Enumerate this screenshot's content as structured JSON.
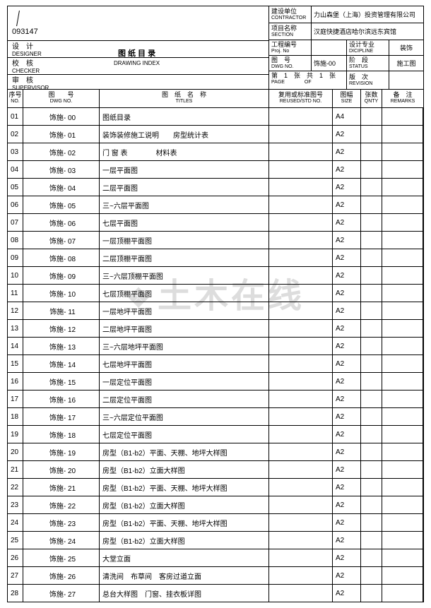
{
  "doc_number": "093147",
  "header_title_cn": "图 纸 目 录",
  "header_title_en": "DRAWING INDEX",
  "left_labels": {
    "designer_cn": "设　计",
    "designer_en": "DESIGNER",
    "checker_cn": "校　核",
    "checker_en": "CHECKER",
    "supervisor_cn": "审　核",
    "supervisor_en": "SUPERVISOR"
  },
  "right_header": {
    "contractor_lab_cn": "建设单位",
    "contractor_lab_en": "CONTRACTOR",
    "contractor_val": "力山森堡（上海）投资管理有限公司",
    "section_lab_cn": "项目名称",
    "section_lab_en": "SECTION",
    "section_val": "汉庭快捷酒店哈尔滨远东宾馆",
    "projno_lab_cn": "工程编号",
    "projno_lab_en": "Proj. No",
    "discipline_lab_cn": "设计专业",
    "discipline_lab_en": "DICIPLINE",
    "discipline_val": "装饰",
    "dwgno_lab_cn": "图　号",
    "dwgno_lab_en": "DWG NO.",
    "dwgno_val": "饰施-00",
    "status_lab_cn": "阶　段",
    "status_lab_en": "STATUS",
    "status_val": "施工图",
    "page_cn": "第　1　张　共　1　张",
    "page_en": "PAGE　　　　OF",
    "rev_lab_cn": "版　次",
    "rev_lab_en": "REVISION"
  },
  "col_headers": {
    "no_cn": "序号",
    "no_en": "NO.",
    "dwg_cn": "图　　号",
    "dwg_en": "DWG NO.",
    "title_cn": "图　纸　名　称",
    "title_en": "TITLES",
    "std_cn": "复用或标准图号",
    "std_en": "REUSED/STD NO.",
    "size_cn": "图幅",
    "size_en": "SIZE",
    "qty_cn": "张数",
    "qty_en": "QNTY",
    "rmk_cn": "备　注",
    "rmk_en": "REMARKS"
  },
  "rows": [
    {
      "no": "01",
      "dwg": "饰施- 00",
      "title": "图纸目录",
      "size": "A4"
    },
    {
      "no": "02",
      "dwg": "饰施- 01",
      "title": "装饰装修施工说明　　房型统计表",
      "size": "A2"
    },
    {
      "no": "03",
      "dwg": "饰施- 02",
      "title": "门 窗 表　　　　材料表",
      "size": "A2"
    },
    {
      "no": "04",
      "dwg": "饰施- 03",
      "title": "一层平面图",
      "size": "A2"
    },
    {
      "no": "05",
      "dwg": "饰施- 04",
      "title": "二层平面图",
      "size": "A2"
    },
    {
      "no": "06",
      "dwg": "饰施- 05",
      "title": "三~六层平面图",
      "size": "A2"
    },
    {
      "no": "07",
      "dwg": "饰施- 06",
      "title": "七层平面图",
      "size": "A2"
    },
    {
      "no": "08",
      "dwg": "饰施- 07",
      "title": "一层顶棚平面图",
      "size": "A2"
    },
    {
      "no": "09",
      "dwg": "饰施- 08",
      "title": "二层顶棚平面图",
      "size": "A2"
    },
    {
      "no": "10",
      "dwg": "饰施- 09",
      "title": "三~六层顶棚平面图",
      "size": "A2"
    },
    {
      "no": "11",
      "dwg": "饰施- 10",
      "title": "七层顶棚平面图",
      "size": "A2"
    },
    {
      "no": "12",
      "dwg": "饰施- 11",
      "title": "一层地坪平面图",
      "size": "A2"
    },
    {
      "no": "13",
      "dwg": "饰施- 12",
      "title": "二层地坪平面图",
      "size": "A2"
    },
    {
      "no": "14",
      "dwg": "饰施- 13",
      "title": "三~六层地坪平面图",
      "size": "A2"
    },
    {
      "no": "15",
      "dwg": "饰施- 14",
      "title": "七层地坪平面图",
      "size": "A2"
    },
    {
      "no": "16",
      "dwg": "饰施- 15",
      "title": "一层定位平面图",
      "size": "A2"
    },
    {
      "no": "17",
      "dwg": "饰施- 16",
      "title": "二层定位平面图",
      "size": "A2"
    },
    {
      "no": "18",
      "dwg": "饰施- 17",
      "title": "三~六层定位平面图",
      "size": "A2"
    },
    {
      "no": "19",
      "dwg": "饰施- 18",
      "title": "七层定位平面图",
      "size": "A2"
    },
    {
      "no": "20",
      "dwg": "饰施- 19",
      "title": "房型（B1-b2）平面、天棚、地坪大样图",
      "size": "A2"
    },
    {
      "no": "21",
      "dwg": "饰施- 20",
      "title": "房型（B1-b2）立面大样图",
      "size": "A2"
    },
    {
      "no": "22",
      "dwg": "饰施- 21",
      "title": "房型（B1-b2）平面、天棚、地坪大样图",
      "size": "A2"
    },
    {
      "no": "23",
      "dwg": "饰施- 22",
      "title": "房型（B1-b2）立面大样图",
      "size": "A2"
    },
    {
      "no": "24",
      "dwg": "饰施- 23",
      "title": "房型（B1-b2）平面、天棚、地坪大样图",
      "size": "A2"
    },
    {
      "no": "25",
      "dwg": "饰施- 24",
      "title": "房型（B1-b2）立面大样图",
      "size": "A2"
    },
    {
      "no": "26",
      "dwg": "饰施- 25",
      "title": "大堂立面",
      "size": "A2"
    },
    {
      "no": "27",
      "dwg": "饰施- 26",
      "title": "清洗间　布草间　客房过道立面",
      "size": "A2"
    },
    {
      "no": "28",
      "dwg": "饰施- 27",
      "title": "总台大样图　门窗、挂衣板详图",
      "size": "A2"
    }
  ],
  "watermark": "土木在线"
}
